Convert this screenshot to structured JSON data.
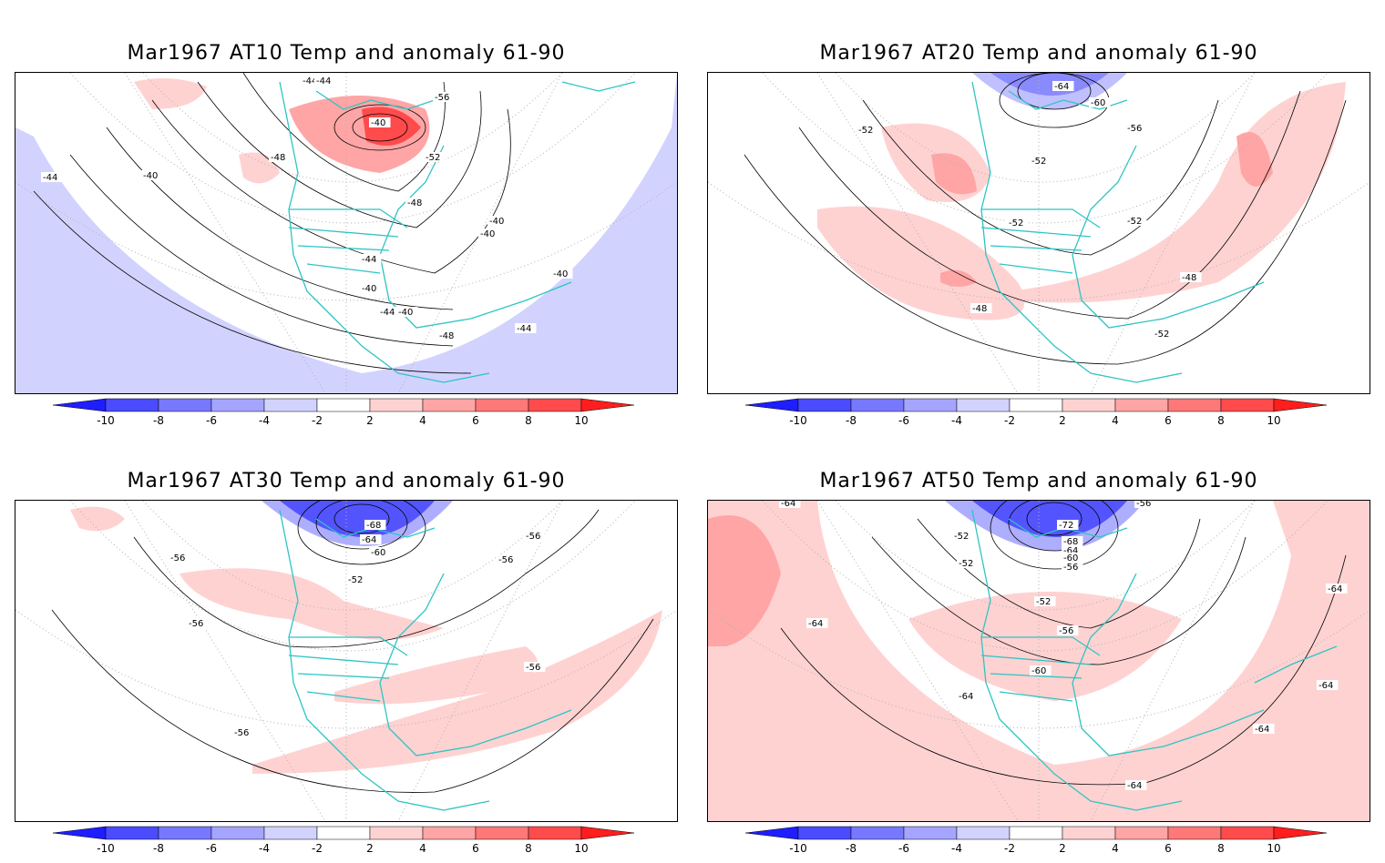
{
  "panels": [
    {
      "title": "Mar1967 AT10 Temp and anomaly 61-90",
      "contour_labels": [
        "-44",
        "-40",
        "-48",
        "-44",
        "-52",
        "-56",
        "-48",
        "-40",
        "-40",
        "-44",
        "-40",
        "-44",
        "-40",
        "-40",
        "-44",
        "-48",
        "-44",
        "-40"
      ]
    },
    {
      "title": "Mar1967 AT20 Temp and anomaly 61-90",
      "contour_labels": [
        "-64",
        "-60",
        "-56",
        "-52",
        "-52",
        "-52",
        "-52",
        "-48",
        "-48",
        "-52"
      ]
    },
    {
      "title": "Mar1967 AT30 Temp and anomaly 61-90",
      "contour_labels": [
        "-68",
        "-64",
        "-60",
        "-56",
        "-56",
        "-52",
        "-56",
        "-56",
        "-56",
        "-56"
      ]
    },
    {
      "title": "Mar1967 AT50 Temp and anomaly 61-90",
      "contour_labels": [
        "-64",
        "-72",
        "-68",
        "-64",
        "-60",
        "-56",
        "-56",
        "-52",
        "-52",
        "-52",
        "-64",
        "-56",
        "-60",
        "-64",
        "-64",
        "-64",
        "-64",
        "-64"
      ]
    }
  ],
  "colorbar": {
    "tick_labels": [
      "-10",
      "-8",
      "-6",
      "-4",
      "-2",
      "2",
      "4",
      "6",
      "8",
      "10"
    ],
    "colors": [
      "#1e1eff",
      "#4b4bff",
      "#7878ff",
      "#a5a5ff",
      "#d2d2ff",
      "#ffffff",
      "#ffd2d2",
      "#ffa5a5",
      "#ff7878",
      "#ff4b4b",
      "#ff1e1e"
    ]
  },
  "map_colors": {
    "coastline": "#2ec4c4",
    "grid": "#b0b0b0",
    "contour": "#000000"
  }
}
